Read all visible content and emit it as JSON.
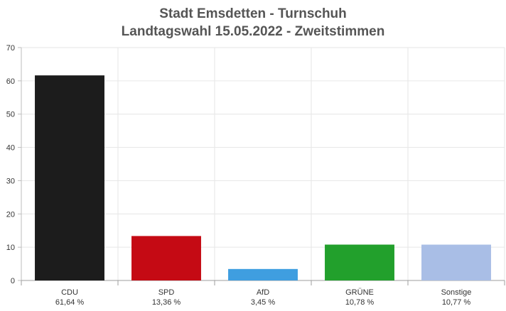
{
  "chart_data": {
    "type": "bar",
    "title": "Stadt Emsdetten - Turnschuh",
    "subtitle": "Landtagswahl 15.05.2022  - Zweitstimmen",
    "categories": [
      "CDU",
      "SPD",
      "AfD",
      "GRÜNE",
      "Sonstige"
    ],
    "value_labels": [
      "61,64 %",
      "13,36 %",
      "3,45 %",
      "10,78 %",
      "10,77 %"
    ],
    "values": [
      61.64,
      13.36,
      3.45,
      10.78,
      10.77
    ],
    "colors": [
      "#1c1c1c",
      "#c50a14",
      "#3f9ee0",
      "#22a02c",
      "#a9bee6"
    ],
    "ylim": [
      0,
      70
    ],
    "yticks": [
      0,
      10,
      20,
      30,
      40,
      50,
      60,
      70
    ],
    "grid": true
  }
}
